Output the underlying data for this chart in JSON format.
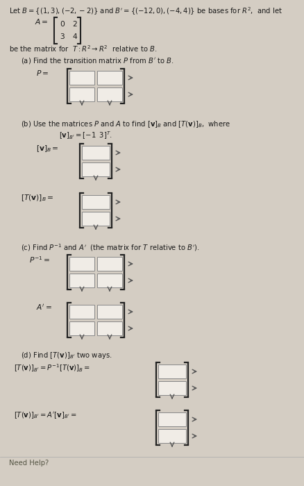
{
  "bg_color": "#d4cdc3",
  "text_color": "#1a1a1a",
  "title_text": "Let $B = \\{(1, 3), (-2, -2)\\}$ and $B' = \\{(-12, 0), (-4, 4)\\}$ be bases for $R^2$,  and let",
  "be_matrix_text": "be the matrix for  $T: R^2 \\rightarrow R^2$  relative to $B$.",
  "part_a_title": "(a) Find the transition matrix $P$ from $B'$ to $B$.",
  "part_a_label": "$P =$",
  "part_b_title": "(b) Use the matrices $P$ and $A$ to find $[\\mathbf{v}]_B$ and $[T(\\mathbf{v})]_B$,  where",
  "part_b_given": "$[\\mathbf{v}]_{B'} = [-1 \\;\\; 3]^T$.",
  "part_b_label1": "$[\\mathbf{v}]_B =$",
  "part_b_label2": "$[T(\\mathbf{v})]_B =$",
  "part_c_title": "(c) Find $P^{-1}$ and $A'$  (the matrix for $T$ relative to $B'$).",
  "part_c_label1": "$P^{-1} =$",
  "part_c_label2": "$A' =$",
  "part_d_title": "(d) Find $[T(\\mathbf{v})]_{B'}$ two ways.",
  "part_d_label1": "$[T(\\mathbf{v})]_{B'} = P^{-1}[T(\\mathbf{v})]_B =$",
  "part_d_label2": "$[T(\\mathbf{v})]_{B'} = A'[\\mathbf{v}]_{B'} =$",
  "box_color": "#f0ece6",
  "box_edge": "#888888",
  "bracket_color": "#222222",
  "arrow_color": "#555555"
}
